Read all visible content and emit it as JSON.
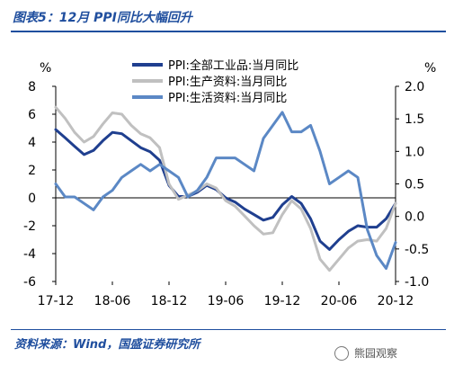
{
  "title": "图表5：12月 PPI同比大幅回升",
  "source": "资料来源：Wind，国盛证券研究所",
  "watermark": "熊园观察",
  "chart_data": {
    "type": "line",
    "left_axis_unit": "%",
    "right_axis_unit": "%",
    "left_ylim": [
      -6,
      8
    ],
    "left_yticks": [
      -6,
      -4,
      -2,
      0,
      2,
      4,
      6,
      8
    ],
    "right_ylim": [
      -1.0,
      2.0
    ],
    "right_yticks": [
      "-1.0",
      "-0.5",
      "0.0",
      "0.5",
      "1.0",
      "1.5",
      "2.0"
    ],
    "x_ticks": [
      "17-12",
      "18-06",
      "18-12",
      "19-06",
      "19-12",
      "20-06",
      "20-12"
    ],
    "x_labels": [
      "17-12",
      "18-01",
      "18-02",
      "18-03",
      "18-04",
      "18-05",
      "18-06",
      "18-07",
      "18-08",
      "18-09",
      "18-10",
      "18-11",
      "18-12",
      "19-01",
      "19-02",
      "19-03",
      "19-04",
      "19-05",
      "19-06",
      "19-07",
      "19-08",
      "19-09",
      "19-10",
      "19-11",
      "19-12",
      "20-01",
      "20-02",
      "20-03",
      "20-04",
      "20-05",
      "20-06",
      "20-07",
      "20-08",
      "20-09",
      "20-10",
      "20-11",
      "20-12"
    ],
    "series": [
      {
        "name": "PPI:全部工业品:当月同比",
        "axis": "left",
        "color": "#1f3f8f",
        "width": 3,
        "values": [
          4.9,
          4.3,
          3.7,
          3.1,
          3.4,
          4.1,
          4.7,
          4.6,
          4.1,
          3.6,
          3.3,
          2.7,
          0.9,
          0.1,
          0.1,
          0.4,
          0.9,
          0.6,
          0.0,
          -0.3,
          -0.8,
          -1.2,
          -1.6,
          -1.4,
          -0.5,
          0.1,
          -0.4,
          -1.5,
          -3.1,
          -3.7,
          -3.0,
          -2.4,
          -2.0,
          -2.1,
          -2.1,
          -1.5,
          -0.4
        ]
      },
      {
        "name": "PPI:生产资料:当月同比",
        "axis": "left",
        "color": "#c0c0c0",
        "width": 3,
        "values": [
          6.5,
          5.7,
          4.7,
          4.0,
          4.4,
          5.3,
          6.1,
          6.0,
          5.2,
          4.6,
          4.3,
          3.6,
          1.0,
          -0.1,
          0.2,
          0.5,
          1.0,
          0.7,
          -0.2,
          -0.6,
          -1.3,
          -2.0,
          -2.6,
          -2.5,
          -1.2,
          -0.2,
          -0.8,
          -2.2,
          -4.4,
          -5.2,
          -4.4,
          -3.6,
          -3.1,
          -3.0,
          -3.1,
          -2.2,
          -0.4
        ]
      },
      {
        "name": "PPI:生活资料:当月同比",
        "axis": "right",
        "color": "#5b88c5",
        "width": 3,
        "values": [
          0.5,
          0.3,
          0.3,
          0.2,
          0.1,
          0.3,
          0.4,
          0.6,
          0.7,
          0.8,
          0.7,
          0.8,
          0.7,
          0.6,
          0.3,
          0.4,
          0.6,
          0.9,
          0.9,
          0.9,
          0.8,
          0.7,
          1.2,
          1.4,
          1.6,
          1.3,
          1.3,
          1.4,
          1.0,
          0.5,
          0.6,
          0.7,
          0.6,
          -0.2,
          -0.6,
          -0.8,
          -0.4
        ]
      }
    ],
    "legend_position": "top-center",
    "grid": false
  }
}
